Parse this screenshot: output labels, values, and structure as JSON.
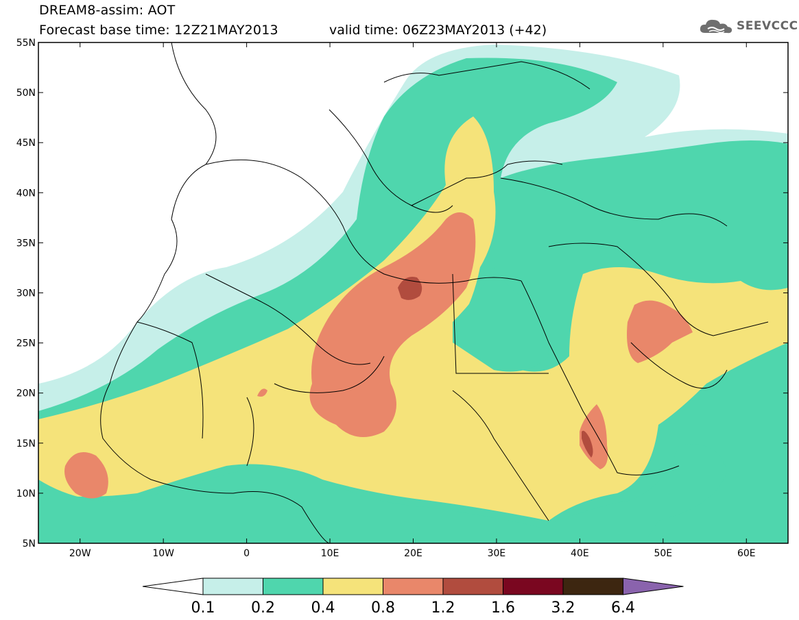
{
  "header": {
    "title_line1": "DREAM8-assim: AOT",
    "title_line2": "Forecast base time: 12Z21MAY2013",
    "valid_time": "valid time: 06Z23MAY2013 (+42)",
    "logo_text": "SEEVCCC",
    "logo_icon": "cloud-icon"
  },
  "map": {
    "lon_range": [
      -25,
      65
    ],
    "lat_range": [
      5,
      55
    ],
    "lat_labels": [
      "55N",
      "50N",
      "45N",
      "40N",
      "35N",
      "30N",
      "25N",
      "20N",
      "15N",
      "10N",
      "5N"
    ],
    "lat_values": [
      55,
      50,
      45,
      40,
      35,
      30,
      25,
      20,
      15,
      10,
      5
    ],
    "lon_labels": [
      "20W",
      "10W",
      "0",
      "10E",
      "20E",
      "30E",
      "40E",
      "50E",
      "60E"
    ],
    "lon_values": [
      -20,
      -10,
      0,
      10,
      20,
      30,
      40,
      50,
      60
    ]
  },
  "colorbar": {
    "labels": [
      "0.1",
      "0.2",
      "0.4",
      "0.8",
      "1.2",
      "1.6",
      "3.2",
      "6.4"
    ],
    "colors": [
      "#c6efe9",
      "#4fd6ad",
      "#f5e37a",
      "#e9876a",
      "#b14c3e",
      "#7a0720",
      "#3d2610"
    ],
    "under_color": "#ffffff",
    "over_color": "#8a63ad"
  }
}
